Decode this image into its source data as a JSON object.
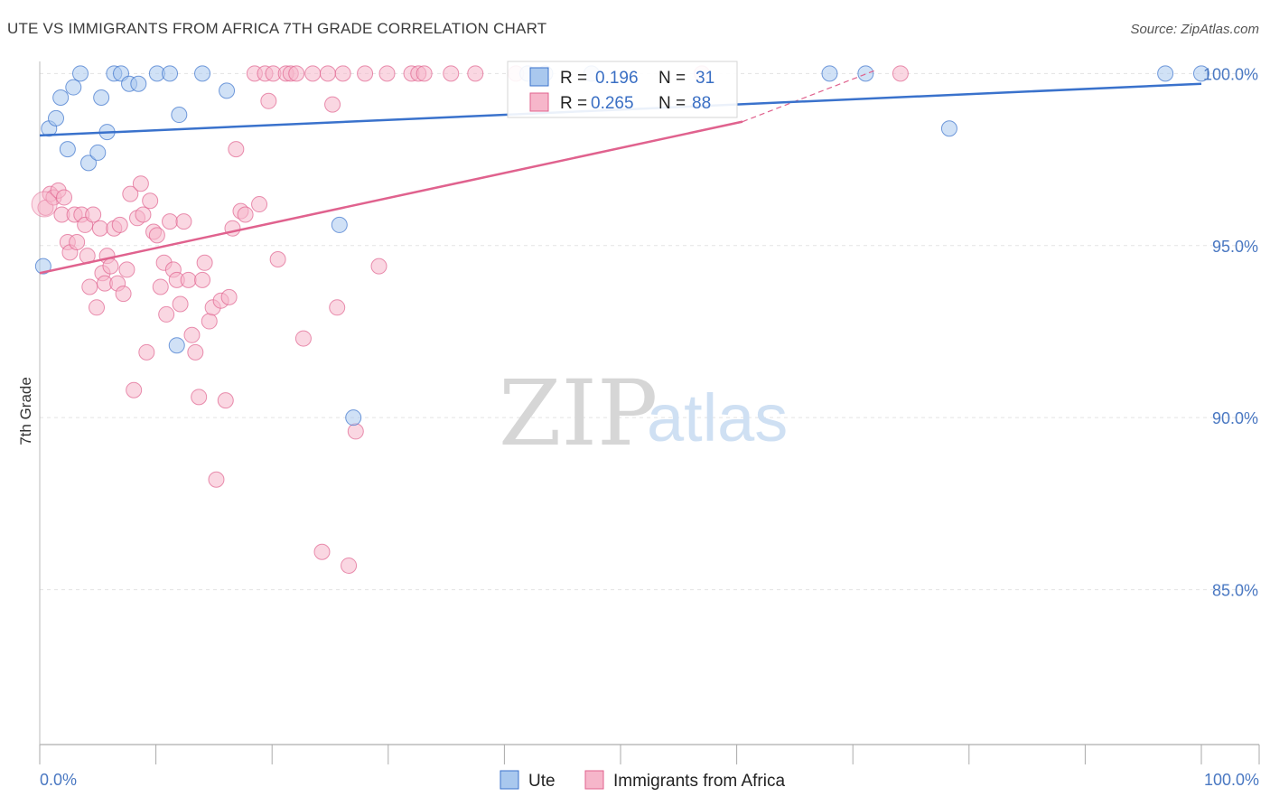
{
  "title": "UTE VS IMMIGRANTS FROM AFRICA 7TH GRADE CORRELATION CHART",
  "source": "Source: ZipAtlas.com",
  "watermark": {
    "zip": "ZIP",
    "atlas": "atlas"
  },
  "colors": {
    "blue": "#3a72cc",
    "blue_fill": "#a9c8ee",
    "pink": "#e0628e",
    "pink_fill": "#f6b6ca",
    "tick": "#4a78c2"
  },
  "chart_data": {
    "type": "scatter",
    "ylabel": "7th Grade",
    "x_tick_labels": [
      "0.0%",
      "100.0%"
    ],
    "y_tick_labels": [
      "100.0%",
      "95.0%",
      "90.0%",
      "85.0%"
    ],
    "y_ticks": [
      100,
      95,
      90,
      85
    ],
    "xlim": [
      0,
      100
    ],
    "ylim": [
      80.5,
      100.35
    ],
    "grid": true,
    "legend_position": "bottom",
    "legend": [
      {
        "label": "Ute",
        "color": "#a9c8ee"
      },
      {
        "label": "Immigrants from Africa",
        "color": "#f6b6ca"
      }
    ],
    "stats": [
      {
        "r_label": "R =",
        "r": "0.196",
        "n_label": "N =",
        "n": "31"
      },
      {
        "r_label": "R =",
        "r": "0.265",
        "n_label": "N =",
        "n": "88"
      }
    ],
    "series": [
      {
        "name": "Ute",
        "trend": {
          "x": [
            0,
            100
          ],
          "y": [
            98.2,
            99.7
          ]
        },
        "points": [
          [
            0.3,
            94.4
          ],
          [
            0.8,
            98.4
          ],
          [
            1.4,
            98.7
          ],
          [
            1.8,
            99.3
          ],
          [
            2.4,
            97.8
          ],
          [
            2.9,
            99.6
          ],
          [
            3.5,
            100
          ],
          [
            4.2,
            97.4
          ],
          [
            5.0,
            97.7
          ],
          [
            5.3,
            99.3
          ],
          [
            5.8,
            98.3
          ],
          [
            6.4,
            100
          ],
          [
            7.0,
            100
          ],
          [
            7.7,
            99.7
          ],
          [
            8.5,
            99.7
          ],
          [
            10.1,
            100
          ],
          [
            11.2,
            100
          ],
          [
            11.8,
            92.1
          ],
          [
            12.0,
            98.8
          ],
          [
            14.0,
            100
          ],
          [
            16.1,
            99.5
          ],
          [
            25.8,
            95.6
          ],
          [
            27.0,
            90.0
          ],
          [
            42.0,
            100
          ],
          [
            43.5,
            100
          ],
          [
            47.5,
            100
          ],
          [
            68.0,
            100
          ],
          [
            71.1,
            100
          ],
          [
            78.3,
            98.4
          ],
          [
            96.9,
            100
          ],
          [
            100,
            100
          ]
        ]
      },
      {
        "name": "Immigrants from Africa",
        "trend": {
          "x": [
            0,
            60.5
          ],
          "y": [
            94.2,
            98.6
          ]
        },
        "trend_dashed": {
          "x": [
            60.5,
            72
          ],
          "y": [
            98.6,
            100.1
          ]
        },
        "points": [
          [
            0.5,
            96.1
          ],
          [
            0.9,
            96.5
          ],
          [
            1.2,
            96.4
          ],
          [
            1.6,
            96.6
          ],
          [
            1.9,
            95.9
          ],
          [
            2.1,
            96.4
          ],
          [
            2.4,
            95.1
          ],
          [
            2.6,
            94.8
          ],
          [
            3.0,
            95.9
          ],
          [
            3.2,
            95.1
          ],
          [
            3.6,
            95.9
          ],
          [
            3.9,
            95.6
          ],
          [
            4.1,
            94.7
          ],
          [
            4.3,
            93.8
          ],
          [
            4.6,
            95.9
          ],
          [
            4.9,
            93.2
          ],
          [
            5.2,
            95.5
          ],
          [
            5.4,
            94.2
          ],
          [
            5.6,
            93.9
          ],
          [
            5.8,
            94.7
          ],
          [
            6.1,
            94.4
          ],
          [
            6.4,
            95.5
          ],
          [
            6.7,
            93.9
          ],
          [
            6.9,
            95.6
          ],
          [
            7.2,
            93.6
          ],
          [
            7.5,
            94.3
          ],
          [
            7.8,
            96.5
          ],
          [
            8.1,
            90.8
          ],
          [
            8.4,
            95.8
          ],
          [
            8.7,
            96.8
          ],
          [
            8.9,
            95.9
          ],
          [
            9.2,
            91.9
          ],
          [
            9.5,
            96.3
          ],
          [
            9.8,
            95.4
          ],
          [
            10.1,
            95.3
          ],
          [
            10.4,
            93.8
          ],
          [
            10.7,
            94.5
          ],
          [
            10.9,
            93.0
          ],
          [
            11.2,
            95.7
          ],
          [
            11.5,
            94.3
          ],
          [
            11.8,
            94.0
          ],
          [
            12.1,
            93.3
          ],
          [
            12.4,
            95.7
          ],
          [
            12.8,
            94.0
          ],
          [
            13.1,
            92.4
          ],
          [
            13.4,
            91.9
          ],
          [
            13.7,
            90.6
          ],
          [
            14.0,
            94.0
          ],
          [
            14.2,
            94.5
          ],
          [
            14.6,
            92.8
          ],
          [
            14.9,
            93.2
          ],
          [
            15.2,
            88.2
          ],
          [
            15.6,
            93.4
          ],
          [
            16.0,
            90.5
          ],
          [
            16.3,
            93.5
          ],
          [
            16.6,
            95.5
          ],
          [
            16.9,
            97.8
          ],
          [
            17.3,
            96.0
          ],
          [
            17.7,
            95.9
          ],
          [
            18.5,
            100
          ],
          [
            18.9,
            96.2
          ],
          [
            19.4,
            100
          ],
          [
            19.7,
            99.2
          ],
          [
            20.1,
            100
          ],
          [
            20.5,
            94.6
          ],
          [
            21.2,
            100
          ],
          [
            21.6,
            100
          ],
          [
            22.1,
            100
          ],
          [
            22.7,
            92.3
          ],
          [
            23.5,
            100
          ],
          [
            24.3,
            86.1
          ],
          [
            24.8,
            100
          ],
          [
            25.2,
            99.1
          ],
          [
            25.6,
            93.2
          ],
          [
            26.1,
            100
          ],
          [
            26.6,
            85.7
          ],
          [
            27.2,
            89.6
          ],
          [
            28.0,
            100
          ],
          [
            29.2,
            94.4
          ],
          [
            29.9,
            100
          ],
          [
            32.0,
            100
          ],
          [
            32.6,
            100
          ],
          [
            33.1,
            100
          ],
          [
            35.4,
            100
          ],
          [
            37.5,
            100
          ],
          [
            41.0,
            100
          ],
          [
            57.0,
            100
          ],
          [
            74.1,
            100
          ]
        ]
      }
    ]
  }
}
